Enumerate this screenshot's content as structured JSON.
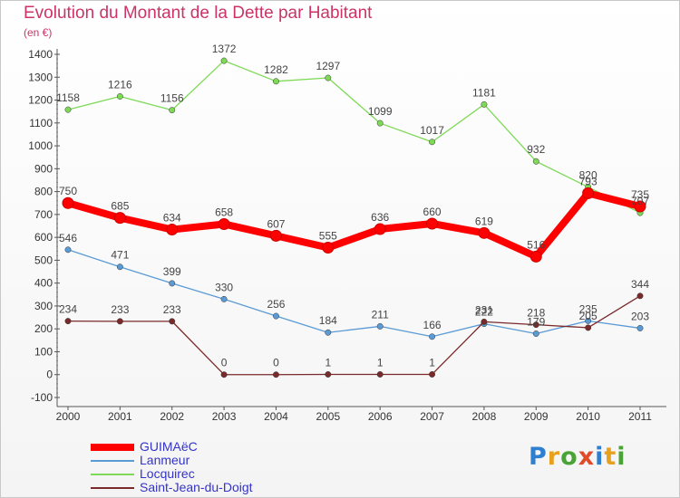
{
  "header": {
    "title": "Evolution du Montant de la Dette par Habitant",
    "unit": "(en €)"
  },
  "logo": {
    "letters": [
      {
        "ch": "P",
        "color": "#2f7fd0"
      },
      {
        "ch": "r",
        "color": "#e8a11d"
      },
      {
        "ch": "o",
        "color": "#4aa336"
      },
      {
        "ch": "x",
        "color": "#e24b2a"
      },
      {
        "ch": "i",
        "color": "#2f7fd0"
      },
      {
        "ch": "t",
        "color": "#e8a11d"
      },
      {
        "ch": "i",
        "color": "#4aa336"
      }
    ]
  },
  "chart_data": {
    "type": "line",
    "title": "Evolution du Montant de la Dette par Habitant",
    "ylabel": "(en €)",
    "xlabel": "",
    "ylim": [
      -100,
      1400
    ],
    "y_ticks": [
      -100,
      0,
      100,
      200,
      300,
      400,
      500,
      600,
      700,
      800,
      900,
      1000,
      1100,
      1200,
      1300,
      1400
    ],
    "categories": [
      "2000",
      "2001",
      "2002",
      "2003",
      "2004",
      "2005",
      "2006",
      "2007",
      "2008",
      "2009",
      "2010",
      "2011"
    ],
    "grid": false,
    "legend_position": "bottom-left",
    "series": [
      {
        "name": "GUIMAëC",
        "color": "#ff0000",
        "values": [
          750,
          685,
          634,
          658,
          607,
          555,
          636,
          660,
          619,
          516,
          793,
          735
        ]
      },
      {
        "name": "Lanmeur",
        "color": "#5b9bd5",
        "values": [
          546,
          471,
          399,
          330,
          256,
          184,
          211,
          166,
          222,
          179,
          235,
          203
        ]
      },
      {
        "name": "Locquirec",
        "color": "#7ed957",
        "values": [
          1158,
          1216,
          1156,
          1372,
          1282,
          1297,
          1099,
          1017,
          1181,
          932,
          820,
          707
        ]
      },
      {
        "name": "Saint-Jean-du-Doigt",
        "color": "#7a2a2a",
        "values": [
          234,
          233,
          233,
          0,
          0,
          1,
          1,
          1,
          231,
          218,
          205,
          344
        ]
      }
    ]
  }
}
